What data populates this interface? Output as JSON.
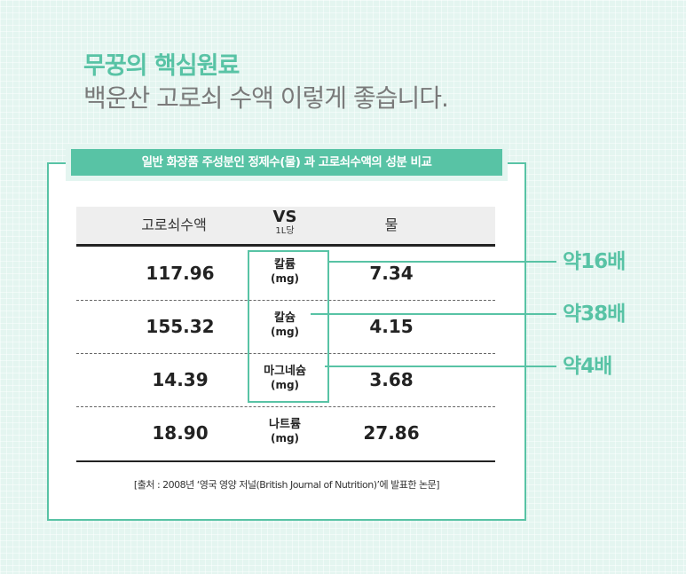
{
  "headline": {
    "title": "무꿍의 핵심원료",
    "subtitle": "백운산 고로쇠 수액 이렇게 좋습니다."
  },
  "banner": "일반 화장품 주성분인 정제수(물) 과 고로쇠수액의 성분 비교",
  "table": {
    "header": {
      "left": "고로쇠수액",
      "vs": "VS",
      "unit": "1L당",
      "right": "물"
    },
    "rows": [
      {
        "sap": "117.96",
        "mineral": "칼륨",
        "unit": "(mg)",
        "water": "7.34"
      },
      {
        "sap": "155.32",
        "mineral": "칼슘",
        "unit": "(mg)",
        "water": "4.15"
      },
      {
        "sap": "14.39",
        "mineral": "마그네슘",
        "unit": "(mg)",
        "water": "3.68"
      },
      {
        "sap": "18.90",
        "mineral": "나트륨",
        "unit": "(mg)",
        "water": "27.86"
      }
    ]
  },
  "ratios": [
    "약16배",
    "약38배",
    "약4배"
  ],
  "source": "[출처 : 2008년 ‘영국 영양 저널(British Journal of Nutrition)’에 발표한 논문]",
  "colors": {
    "accent": "#58c3a5",
    "background": "#e4f5f0"
  }
}
